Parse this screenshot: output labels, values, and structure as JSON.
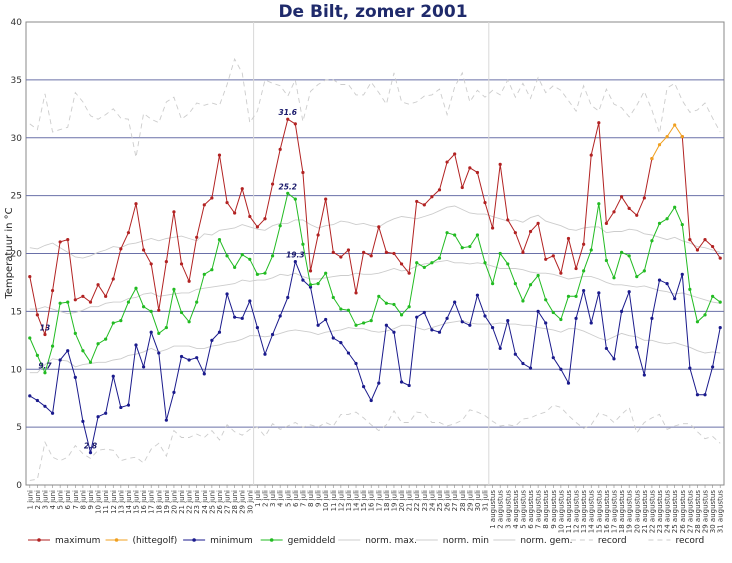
{
  "chart_data": {
    "type": "line",
    "title": "De Bilt, zomer 2001",
    "ylabel": "Temperatuur in °C",
    "xlabel": "",
    "ylim": [
      0,
      40
    ],
    "yticks": [
      0,
      5,
      10,
      15,
      20,
      25,
      30,
      35,
      40
    ],
    "grid": true,
    "legend_position": "bottom",
    "categories": [
      "1 juni",
      "2 juni",
      "3 juni",
      "4 juni",
      "5 juni",
      "6 juni",
      "7 juni",
      "8 juni",
      "9 juni",
      "10 juni",
      "11 juni",
      "12 juni",
      "13 juni",
      "14 juni",
      "15 juni",
      "16 juni",
      "17 juni",
      "18 juni",
      "19 juni",
      "20 juni",
      "21 juni",
      "22 juni",
      "23 juni",
      "24 juni",
      "25 juni",
      "26 juni",
      "27 juni",
      "28 juni",
      "29 juni",
      "30 juni",
      "1 juli",
      "2 juli",
      "3 juli",
      "4 juli",
      "5 juli",
      "6 juli",
      "7 juli",
      "8 juli",
      "9 juli",
      "10 juli",
      "11 juli",
      "12 juli",
      "13 juli",
      "14 juli",
      "15 juli",
      "16 juli",
      "17 juli",
      "18 juli",
      "19 juli",
      "20 juli",
      "21 juli",
      "22 juli",
      "23 juli",
      "24 juli",
      "25 juli",
      "26 juli",
      "27 juli",
      "28 juli",
      "29 juli",
      "30 juli",
      "31 juli",
      "1 augustus",
      "2 augustus",
      "3 augustus",
      "4 augustus",
      "5 augustus",
      "6 augustus",
      "7 augustus",
      "8 augustus",
      "9 augustus",
      "10 augustus",
      "11 augustus",
      "12 augustus",
      "13 augustus",
      "14 augustus",
      "15 augustus",
      "16 augustus",
      "17 augustus",
      "18 augustus",
      "19 augustus",
      "20 augustus",
      "21 augustus",
      "22 augustus",
      "23 augustus",
      "24 augustus",
      "25 augustus",
      "26 augustus",
      "27 augustus",
      "28 augustus",
      "29 augustus",
      "30 augustus",
      "31 augustus"
    ],
    "series": [
      {
        "name": "maximum",
        "color": "#b22222",
        "marker": "dot",
        "dash": "solid",
        "values": [
          18,
          14.7,
          13,
          16.8,
          21,
          21.2,
          16,
          16.3,
          15.8,
          17.3,
          16.3,
          17.8,
          20.4,
          21.8,
          24.3,
          20.3,
          19.1,
          15.1,
          19.3,
          23.6,
          19.1,
          17.6,
          21.4,
          24.2,
          24.8,
          28.5,
          24.4,
          23.5,
          25.6,
          23.2,
          22.3,
          23,
          26,
          29,
          31.6,
          31.2,
          27,
          18.5,
          21.6,
          24.7,
          20.1,
          19.7,
          20.3,
          16.6,
          20.1,
          19.8,
          22.3,
          20.1,
          20,
          19.1,
          18.3,
          24.5,
          24.2,
          24.9,
          25.5,
          27.9,
          28.6,
          25.7,
          27.4,
          27,
          24.4,
          22.2,
          27.7,
          22.9,
          21.8,
          20.1,
          21.9,
          22.6,
          19.5,
          19.8,
          18.3,
          21.3,
          18.7,
          20.8,
          28.5,
          31.3,
          22.6,
          23.6,
          24.9,
          23.9,
          23.3,
          24.8,
          28.2,
          null,
          null,
          null,
          30.1,
          21.2,
          20.3,
          21.2,
          20.6,
          19.6
        ]
      },
      {
        "name": "(hittegolf)",
        "color": "#f0a020",
        "marker": "dot",
        "dash": "solid",
        "values": [
          null,
          null,
          null,
          null,
          null,
          null,
          null,
          null,
          null,
          null,
          null,
          null,
          null,
          null,
          null,
          null,
          null,
          null,
          null,
          null,
          null,
          null,
          null,
          null,
          null,
          null,
          null,
          null,
          null,
          null,
          null,
          null,
          null,
          null,
          null,
          null,
          null,
          null,
          null,
          null,
          null,
          null,
          null,
          null,
          null,
          null,
          null,
          null,
          null,
          null,
          null,
          null,
          null,
          null,
          null,
          null,
          null,
          null,
          null,
          null,
          null,
          null,
          null,
          null,
          null,
          null,
          null,
          null,
          null,
          null,
          null,
          null,
          null,
          null,
          null,
          null,
          null,
          null,
          null,
          null,
          null,
          null,
          28.2,
          29.4,
          30.1,
          31.1,
          30.1,
          null,
          null,
          null,
          null,
          null
        ]
      },
      {
        "name": "minimum",
        "color": "#1a1a8c",
        "marker": "dot",
        "dash": "solid",
        "values": [
          7.7,
          7.3,
          6.8,
          6.2,
          10.8,
          11.6,
          9.3,
          5.5,
          2.8,
          5.9,
          6.2,
          9.4,
          6.7,
          6.9,
          12.1,
          10.2,
          13.2,
          11.4,
          5.6,
          8,
          11.1,
          10.8,
          11,
          9.6,
          12.5,
          13.2,
          16.5,
          14.5,
          14.4,
          15.9,
          13.6,
          11.3,
          13,
          14.6,
          16.2,
          19.3,
          17.7,
          17.1,
          13.8,
          14.3,
          12.7,
          12.3,
          11.4,
          10.5,
          8.5,
          7.3,
          8.8,
          13.8,
          13.2,
          8.9,
          8.6,
          14.5,
          14.9,
          13.4,
          13.2,
          14.4,
          15.8,
          14.1,
          13.8,
          16.4,
          14.6,
          13.6,
          11.8,
          14.2,
          11.3,
          10.5,
          10.1,
          15,
          14,
          11,
          10,
          8.8,
          14.4,
          16.8,
          14,
          16.6,
          11.8,
          10.9,
          15,
          16.7,
          11.9,
          9.5,
          14.4,
          17.7,
          17.4,
          16.1,
          18.2,
          10.1,
          7.8,
          7.8,
          10.2,
          13.6
        ]
      },
      {
        "name": "gemiddeld",
        "color": "#22bb22",
        "marker": "dot",
        "dash": "solid",
        "values": [
          12.7,
          11.2,
          9.7,
          12,
          15.7,
          15.8,
          13.1,
          11.6,
          10.6,
          12.2,
          12.6,
          14,
          14.2,
          15.8,
          17,
          15.4,
          15,
          13.1,
          13.6,
          16.9,
          14.9,
          14.1,
          15.8,
          18.2,
          18.6,
          21.2,
          19.8,
          18.8,
          19.9,
          19.5,
          18.2,
          18.3,
          19.8,
          22.4,
          25.2,
          24.7,
          20.8,
          17.3,
          17.4,
          18.3,
          16.2,
          15.2,
          15.1,
          13.8,
          14,
          14.2,
          16.3,
          15.7,
          15.6,
          14.7,
          15.4,
          19.2,
          18.8,
          19.2,
          19.6,
          21.8,
          21.6,
          20.5,
          20.6,
          21.6,
          19.2,
          17.4,
          20,
          19.1,
          17.4,
          15.9,
          17.3,
          18.1,
          16,
          14.9,
          14.3,
          16.3,
          16.3,
          18.5,
          20.3,
          24.3,
          19.4,
          17.9,
          20.1,
          19.8,
          18,
          18.5,
          21.1,
          22.6,
          23,
          24,
          22.5,
          16.9,
          14.1,
          14.7,
          16.3,
          15.8
        ]
      },
      {
        "name": "norm. max.",
        "color": "#cccccc",
        "marker": "none",
        "dash": "solid",
        "values": [
          20.5,
          20.4,
          20.7,
          20.9,
          20.5,
          20.1,
          19.7,
          19.6,
          19.8,
          20.1,
          20.3,
          20.6,
          20.5,
          20.8,
          20.9,
          21.1,
          21.3,
          21.1,
          21.3,
          21.4,
          21.5,
          21.3,
          21.1,
          21.7,
          21.6,
          22,
          22.1,
          22.2,
          22.5,
          22.3,
          22.1,
          22,
          22.4,
          22.6,
          22.6,
          22.9,
          22.9,
          22.5,
          22.2,
          22.4,
          22.5,
          22.8,
          22.7,
          22.5,
          22.6,
          22.4,
          22.3,
          22.7,
          23,
          23.2,
          23.1,
          23,
          23.2,
          23.4,
          23.7,
          24,
          24.1,
          23.8,
          23.5,
          23.4,
          23.4,
          23.2,
          23,
          22.8,
          22.9,
          22.7,
          23.1,
          23.3,
          22.8,
          22.6,
          22.4,
          22.1,
          22,
          22.2,
          22.3,
          22.3,
          21.8,
          21.9,
          21.9,
          22.1,
          22,
          21.7,
          21.6,
          21.4,
          21.2,
          21.4,
          21.1,
          20.9,
          20.6,
          20.5,
          20.3,
          20.1
        ]
      },
      {
        "name": "norm. min",
        "color": "#cccccc",
        "marker": "none",
        "dash": "solid",
        "values": [
          9.7,
          9.7,
          10.4,
          10.9,
          10.8,
          10.7,
          10.2,
          10.4,
          10.5,
          10.6,
          10.6,
          10.8,
          10.9,
          11.2,
          11.3,
          11.5,
          11.8,
          11.5,
          11.7,
          12,
          12,
          12,
          11.8,
          11.8,
          12,
          12.1,
          12.3,
          12.4,
          12.6,
          12.9,
          12.9,
          12.8,
          12.9,
          13.1,
          13.3,
          13.4,
          13.3,
          13.2,
          13,
          13.2,
          13.3,
          13.4,
          13.6,
          13.5,
          13.5,
          13.3,
          13.2,
          13.3,
          13.5,
          13.8,
          13.8,
          13.6,
          13.4,
          13.6,
          13.8,
          14,
          14.1,
          14.2,
          14,
          13.9,
          13.9,
          13.9,
          14,
          13.9,
          13.9,
          13.8,
          13.8,
          13.6,
          13.5,
          13.4,
          13.2,
          13.5,
          13.5,
          13.3,
          13,
          12.7,
          12.5,
          12.8,
          13.1,
          12.9,
          12.8,
          12.5,
          12.5,
          12.3,
          12.2,
          12.3,
          12.1,
          11.9,
          11.6,
          11.4,
          11.5,
          11.4
        ]
      },
      {
        "name": "norm. gem.",
        "color": "#cccccc",
        "marker": "none",
        "dash": "solid",
        "values": [
          15.2,
          15.2,
          15.4,
          15.2,
          15,
          14.8,
          14.9,
          15.1,
          15.4,
          15.4,
          15.7,
          15.8,
          15.8,
          16.1,
          16.2,
          16.5,
          16.6,
          16.3,
          16.4,
          16.5,
          16.6,
          16.6,
          16.9,
          17,
          17.1,
          17.2,
          17.3,
          17.4,
          17.7,
          17.6,
          17.7,
          17.7,
          17.9,
          18.2,
          18.1,
          18.3,
          18,
          17.8,
          17.8,
          17.9,
          18,
          18.1,
          18.1,
          18.3,
          18.2,
          18.2,
          18.3,
          18.5,
          18.7,
          18.5,
          18.6,
          18.9,
          19.1,
          19.2,
          19.3,
          19.4,
          19.2,
          19.2,
          19.1,
          19.2,
          19.1,
          18.9,
          18.7,
          18.7,
          18.7,
          18.6,
          18.4,
          18.3,
          18.3,
          18.2,
          18,
          17.8,
          17.9,
          18,
          18,
          17.8,
          17.5,
          17.3,
          17.3,
          17.2,
          17.1,
          17.2,
          17,
          16.8,
          16.7,
          16.5,
          16.6,
          16.4,
          16.2,
          16,
          15.8,
          15.7
        ]
      },
      {
        "name": "record",
        "color": "#cccccc",
        "marker": "none",
        "dash": "dashed",
        "values": [
          31.2,
          30.7,
          33.8,
          30.5,
          30.7,
          30.9,
          33.9,
          33.1,
          31.9,
          31.6,
          32,
          32.5,
          31.7,
          31.6,
          28.3,
          32.1,
          31.6,
          31.3,
          33.1,
          33.5,
          31.6,
          32.1,
          33,
          32.8,
          33,
          32.8,
          34.6,
          36.8,
          35.6,
          31.3,
          32.3,
          35,
          34.7,
          34.5,
          33.6,
          35,
          31.4,
          34,
          34.6,
          35,
          35,
          34.6,
          34.6,
          33.7,
          33.7,
          34.8,
          33.9,
          32.9,
          35.6,
          33.1,
          32.9,
          33.1,
          33.6,
          33.7,
          34.2,
          32,
          34.4,
          35.6,
          33.1,
          34.1,
          33.5,
          34.1,
          33.7,
          35,
          33.5,
          34.7,
          33.4,
          35.2,
          33.9,
          34.5,
          34.1,
          33.2,
          32.3,
          34.5,
          32.8,
          32.3,
          34.2,
          32.9,
          32.6,
          31.8,
          32.8,
          34,
          32.4,
          30.4,
          34.3,
          34.7,
          33.2,
          32.2,
          32.4,
          33,
          31.7,
          30.5
        ]
      },
      {
        "name": "record",
        "color": "#cccccc",
        "marker": "none",
        "dash": "dashed",
        "values": [
          0.4,
          0.5,
          3.7,
          2.4,
          2.1,
          2.4,
          3.4,
          2.7,
          2.3,
          3,
          3.1,
          3,
          2.1,
          2.3,
          2.4,
          1.9,
          3.1,
          3.6,
          2.5,
          4.7,
          4.1,
          4.1,
          4.4,
          4.1,
          4.7,
          3.9,
          5.2,
          4.6,
          4.3,
          4.8,
          5,
          4.2,
          5.3,
          4.8,
          5.1,
          5.4,
          5,
          5.2,
          5,
          5.4,
          5.1,
          6.1,
          6.1,
          6.3,
          5.8,
          5.2,
          4.7,
          5.2,
          6.4,
          5.4,
          5.4,
          6.3,
          6.2,
          5.4,
          5.4,
          5.1,
          5.3,
          5.6,
          6.5,
          6.3,
          6,
          5.5,
          5.1,
          5.2,
          5.1,
          5.7,
          5.8,
          6.1,
          6.3,
          6.9,
          6.7,
          6,
          5.4,
          4.9,
          5.2,
          6.2,
          6,
          5.4,
          6.1,
          6.7,
          4.5,
          5.4,
          5.8,
          6.1,
          4.8,
          5.1,
          5.3,
          5.3,
          4.6,
          4,
          4.2,
          3.6
        ]
      }
    ],
    "annotations": [
      {
        "text": "31.6",
        "x": "5 juli",
        "y": 31.6
      },
      {
        "text": "25.2",
        "x": "5 juli",
        "y": 25.2
      },
      {
        "text": "19.3",
        "x": "6 juli",
        "y": 19.3
      },
      {
        "text": "13",
        "x": "3 juni",
        "y": 13
      },
      {
        "text": "9.7",
        "x": "3 juni",
        "y": 9.7
      },
      {
        "text": "2.8",
        "x": "9 juni",
        "y": 2.8
      }
    ]
  }
}
